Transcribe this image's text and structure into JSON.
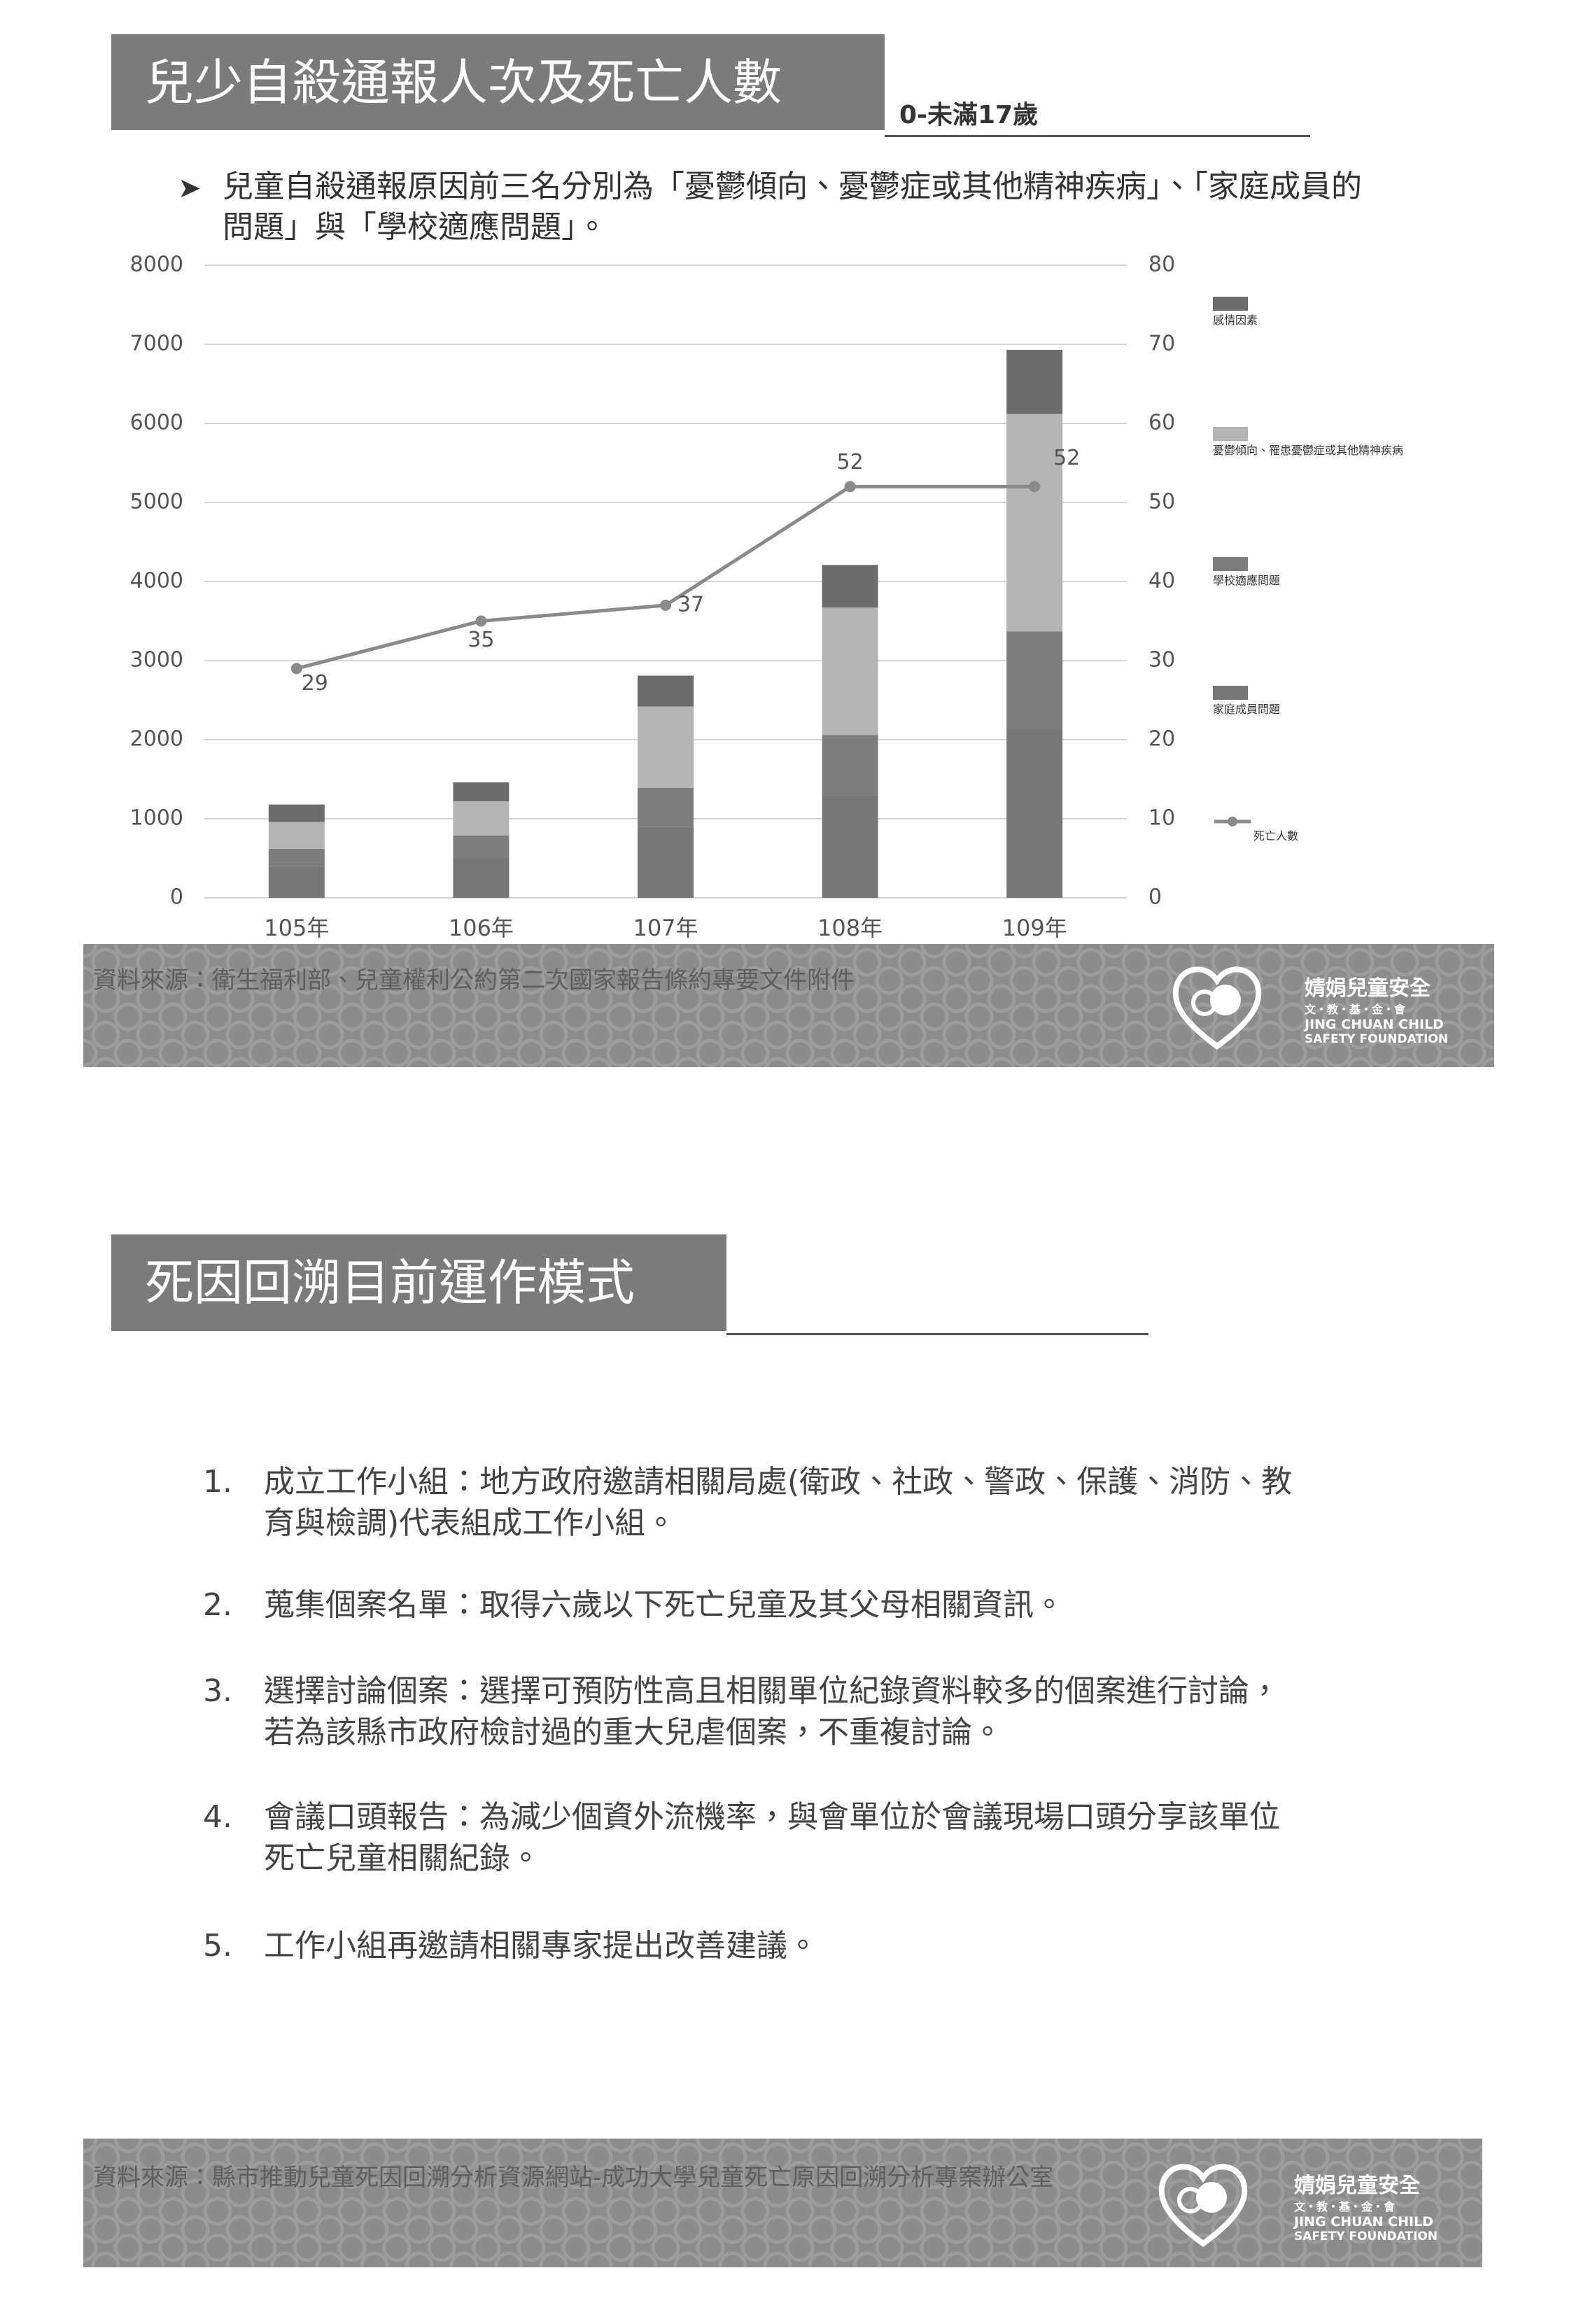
{
  "section1": {
    "title": "兒少自殺通報人次及死亡人數",
    "subtitle": "0-未滿17歲",
    "bullet": "兒童自殺通報原因前三名分別為「憂鬱傾向、憂鬱症或其他精神疾病」、「家庭成員的問題」與「學校適應問題」。",
    "source": "資料來源：衛生福利部、兒童權利公約第二次國家報告條約專要文件附件"
  },
  "chart_data": {
    "type": "bar",
    "stacked": true,
    "categories": [
      "105年",
      "106年",
      "107年",
      "108年",
      "109年"
    ],
    "series": [
      {
        "name": "家庭成員問題",
        "color": "#777777",
        "values": [
          400,
          500,
          900,
          1300,
          2150
        ]
      },
      {
        "name": "學校適應問題",
        "color": "#7d7d7d",
        "values": [
          220,
          290,
          490,
          760,
          1220
        ]
      },
      {
        "name": "憂鬱傾向、罹患憂鬱症或其他精神疾病",
        "color": "#b4b4b4",
        "values": [
          340,
          430,
          1030,
          1610,
          2750
        ]
      },
      {
        "name": "感情因素",
        "color": "#6c6c6c",
        "values": [
          220,
          240,
          390,
          540,
          810
        ]
      },
      {
        "name": "死亡人數",
        "color": "#8a8a8a",
        "type": "line",
        "axis": "y2",
        "values": [
          29,
          35,
          37,
          52,
          52
        ]
      }
    ],
    "ylim": [
      0,
      8000
    ],
    "yticks": [
      0,
      1000,
      2000,
      3000,
      4000,
      5000,
      6000,
      7000,
      8000
    ],
    "y2lim": [
      0,
      80
    ],
    "y2ticks": [
      0,
      10,
      20,
      30,
      40,
      50,
      60,
      70,
      80
    ],
    "grid": true,
    "legend": "right"
  },
  "section2": {
    "title": "死因回溯目前運作模式",
    "items": [
      {
        "number": "1.",
        "text": "成立工作小組：地方政府邀請相關局處(衛政、社政、警政、保護、消防、教育與檢調)代表組成工作小組。"
      },
      {
        "number": "2.",
        "text": "蒐集個案名單：取得六歲以下死亡兒童及其父母相關資訊。"
      },
      {
        "number": "3.",
        "text": "選擇討論個案：選擇可預防性高且相關單位紀錄資料較多的個案進行討論，若為該縣市政府檢討過的重大兒虐個案，不重複討論。"
      },
      {
        "number": "4.",
        "text": "會議口頭報告：為減少個資外流機率，與會單位於會議現場口頭分享該單位死亡兒童相關紀錄。"
      },
      {
        "number": "5.",
        "text": "工作小組再邀請相關專家提出改善建議。"
      }
    ],
    "source": "資料來源：縣市推動兒童死因回溯分析資源網站-成功大學兒童死亡原因回溯分析專案辦公室"
  },
  "logo": {
    "name": "婧娟兒童安全",
    "sub": "文・教・基・金・會",
    "en1": "JING CHUAN CHILD",
    "en2": "SAFETY FOUNDATION"
  }
}
